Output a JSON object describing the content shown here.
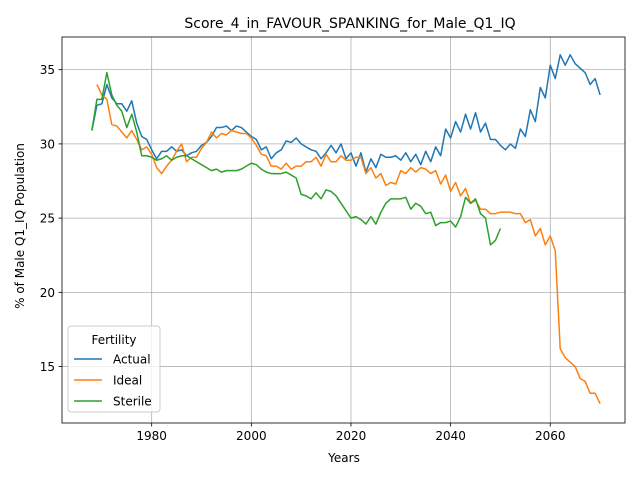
{
  "chart_data": {
    "type": "line",
    "title": "Score_4_in_FAVOUR_SPANKING_for_Male_Q1_IQ",
    "xlabel": "Years",
    "ylabel": "% of Male Q1_IQ Population",
    "xlim": [
      1962,
      2075
    ],
    "ylim": [
      11.2,
      37.2
    ],
    "xticks": [
      1980,
      2000,
      2020,
      2040,
      2060
    ],
    "yticks": [
      15,
      20,
      25,
      30,
      35
    ],
    "grid": true,
    "legend": {
      "title": "Fertility",
      "location": "lower-left"
    },
    "series": [
      {
        "name": "Actual",
        "color": "#1f77b4",
        "x": [
          1968,
          1969,
          1970,
          1971,
          1972,
          1973,
          1974,
          1975,
          1976,
          1977,
          1978,
          1979,
          1980,
          1981,
          1982,
          1983,
          1984,
          1985,
          1986,
          1987,
          1988,
          1989,
          1990,
          1991,
          1992,
          1993,
          1994,
          1995,
          1996,
          1997,
          1998,
          1999,
          2000,
          2001,
          2002,
          2003,
          2004,
          2005,
          2006,
          2007,
          2008,
          2009,
          2010,
          2011,
          2012,
          2013,
          2014,
          2015,
          2016,
          2017,
          2018,
          2019,
          2020,
          2021,
          2022,
          2023,
          2024,
          2025,
          2026,
          2027,
          2028,
          2029,
          2030,
          2031,
          2032,
          2033,
          2034,
          2035,
          2036,
          2037,
          2038,
          2039,
          2040,
          2041,
          2042,
          2043,
          2044,
          2045,
          2046,
          2047,
          2048,
          2049,
          2050,
          2051,
          2052,
          2053,
          2054,
          2055,
          2056,
          2057,
          2058,
          2059,
          2060,
          2061,
          2062,
          2063,
          2064,
          2065,
          2066,
          2067,
          2068,
          2069,
          2070
        ],
        "values": [
          30.9,
          32.6,
          32.7,
          34.0,
          33.1,
          32.7,
          32.7,
          32.2,
          32.9,
          31.4,
          30.5,
          30.3,
          29.6,
          29.0,
          29.5,
          29.5,
          29.8,
          29.5,
          29.6,
          29.2,
          29.4,
          29.5,
          29.9,
          30.1,
          30.5,
          31.1,
          31.1,
          31.2,
          30.9,
          31.2,
          31.1,
          30.8,
          30.5,
          30.3,
          29.6,
          29.8,
          29.0,
          29.4,
          29.6,
          30.2,
          30.1,
          30.4,
          30.0,
          29.8,
          29.6,
          29.5,
          29.0,
          29.4,
          29.9,
          29.4,
          30.0,
          29.0,
          29.4,
          28.5,
          29.4,
          28.1,
          29.0,
          28.4,
          29.3,
          29.1,
          29.1,
          29.2,
          28.9,
          29.4,
          28.8,
          29.3,
          28.6,
          29.5,
          28.8,
          29.8,
          29.2,
          31.0,
          30.4,
          31.5,
          30.8,
          32.0,
          31.0,
          32.1,
          30.8,
          31.4,
          30.3,
          30.3,
          29.9,
          29.6,
          30.0,
          29.7,
          31.0,
          30.5,
          32.3,
          31.5,
          33.8,
          33.1,
          35.3,
          34.4,
          36.0,
          35.3,
          36.0,
          35.4,
          35.1,
          34.8,
          34.0,
          34.4,
          33.3
        ]
      },
      {
        "name": "Ideal",
        "color": "#ff7f0e",
        "x": [
          1969,
          1970,
          1971,
          1972,
          1973,
          1974,
          1975,
          1976,
          1977,
          1978,
          1979,
          1980,
          1981,
          1982,
          1983,
          1984,
          1985,
          1986,
          1987,
          1988,
          1989,
          1990,
          1991,
          1992,
          1993,
          1994,
          1995,
          1996,
          1997,
          1998,
          1999,
          2000,
          2001,
          2002,
          2003,
          2004,
          2005,
          2006,
          2007,
          2008,
          2009,
          2010,
          2011,
          2012,
          2013,
          2014,
          2015,
          2016,
          2017,
          2018,
          2019,
          2020,
          2021,
          2022,
          2023,
          2024,
          2025,
          2026,
          2027,
          2028,
          2029,
          2030,
          2031,
          2032,
          2033,
          2034,
          2035,
          2036,
          2037,
          2038,
          2039,
          2040,
          2041,
          2042,
          2043,
          2044,
          2045,
          2046,
          2047,
          2048,
          2049,
          2050,
          2051,
          2052,
          2053,
          2054,
          2055,
          2056,
          2057,
          2058,
          2059,
          2060,
          2061,
          2062,
          2063,
          2064,
          2065,
          2066,
          2067,
          2068,
          2069,
          2070
        ],
        "values": [
          34.0,
          33.3,
          33.0,
          31.3,
          31.2,
          30.8,
          30.4,
          30.9,
          30.3,
          29.6,
          29.8,
          29.3,
          28.4,
          28.0,
          28.5,
          28.9,
          29.5,
          30.0,
          28.8,
          29.1,
          29.1,
          29.7,
          30.1,
          30.8,
          30.4,
          30.7,
          30.6,
          30.9,
          30.8,
          30.7,
          30.7,
          30.4,
          29.9,
          29.3,
          29.2,
          28.5,
          28.5,
          28.3,
          28.7,
          28.3,
          28.5,
          28.5,
          28.8,
          28.8,
          29.1,
          28.5,
          29.3,
          28.8,
          28.8,
          29.2,
          28.9,
          28.9,
          29.1,
          29.1,
          28.0,
          28.4,
          27.7,
          28.0,
          27.2,
          27.4,
          27.3,
          28.2,
          28.0,
          28.4,
          28.1,
          28.4,
          28.3,
          28.0,
          28.2,
          27.3,
          27.9,
          26.8,
          27.4,
          26.5,
          27.0,
          26.0,
          26.2,
          25.6,
          25.6,
          25.3,
          25.3,
          25.4,
          25.4,
          25.4,
          25.3,
          25.3,
          24.7,
          24.9,
          23.8,
          24.3,
          23.2,
          23.8,
          22.8,
          16.2,
          15.6,
          15.3,
          15.0,
          14.2,
          14.0,
          13.2,
          13.2,
          12.5
        ]
      },
      {
        "name": "Sterile",
        "color": "#2ca02c",
        "x": [
          1968,
          1969,
          1970,
          1971,
          1972,
          1973,
          1974,
          1975,
          1976,
          1977,
          1978,
          1979,
          1980,
          1981,
          1982,
          1983,
          1984,
          1985,
          1986,
          1987,
          1988,
          1989,
          1990,
          1991,
          1992,
          1993,
          1994,
          1995,
          1996,
          1997,
          1998,
          1999,
          2000,
          2001,
          2002,
          2003,
          2004,
          2005,
          2006,
          2007,
          2008,
          2009,
          2010,
          2011,
          2012,
          2013,
          2014,
          2015,
          2016,
          2017,
          2018,
          2019,
          2020,
          2021,
          2022,
          2023,
          2024,
          2025,
          2026,
          2027,
          2028,
          2029,
          2030,
          2031,
          2032,
          2033,
          2034,
          2035,
          2036,
          2037,
          2038,
          2039,
          2040,
          2041,
          2042,
          2043,
          2044,
          2045,
          2046,
          2047,
          2048,
          2049,
          2050
        ],
        "values": [
          30.9,
          33.0,
          33.0,
          34.8,
          33.3,
          32.6,
          32.2,
          31.1,
          32.0,
          30.8,
          29.2,
          29.2,
          29.1,
          28.9,
          29.0,
          29.2,
          28.9,
          29.1,
          29.2,
          29.2,
          29.0,
          28.8,
          28.6,
          28.4,
          28.2,
          28.3,
          28.1,
          28.2,
          28.2,
          28.2,
          28.3,
          28.5,
          28.7,
          28.6,
          28.3,
          28.1,
          28.0,
          28.0,
          28.0,
          28.1,
          27.9,
          27.7,
          26.6,
          26.5,
          26.3,
          26.7,
          26.3,
          26.9,
          26.8,
          26.5,
          26.0,
          25.5,
          25.0,
          25.1,
          24.9,
          24.6,
          25.1,
          24.6,
          25.4,
          26.0,
          26.3,
          26.3,
          26.3,
          26.4,
          25.6,
          26.0,
          25.8,
          25.3,
          25.4,
          24.5,
          24.7,
          24.7,
          24.8,
          24.4,
          25.1,
          26.4,
          26.0,
          26.3,
          25.3,
          25.0,
          23.2,
          23.5,
          24.3
        ]
      }
    ]
  }
}
